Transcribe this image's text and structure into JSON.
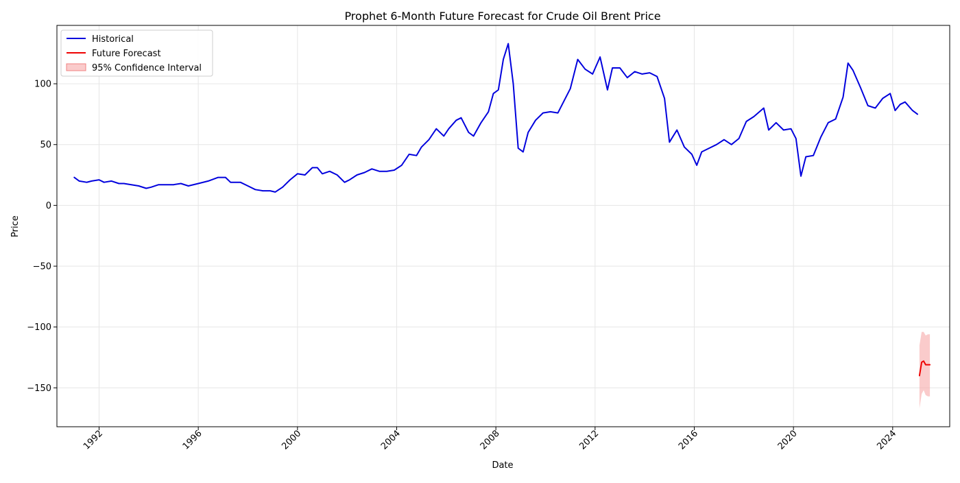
{
  "chart_data": {
    "type": "line",
    "title": "Prophet 6-Month Future Forecast for Crude Oil Brent Price",
    "xlabel": "Date",
    "ylabel": "Price",
    "xlim": [
      1990.3,
      2026.3
    ],
    "ylim": [
      -182,
      148
    ],
    "x_ticks": [
      1992,
      1996,
      2000,
      2004,
      2008,
      2012,
      2016,
      2020,
      2024
    ],
    "y_ticks": [
      100,
      50,
      0,
      -50,
      -100,
      -150
    ],
    "y_tick_labels": [
      "100",
      "50",
      "0",
      "−50",
      "−100",
      "−150"
    ],
    "grid": true,
    "legend_position": "top-left",
    "legend": [
      {
        "label": "Historical",
        "color": "#0000dd",
        "kind": "line"
      },
      {
        "label": "Future Forecast",
        "color": "#ee0000",
        "kind": "line"
      },
      {
        "label": "95% Confidence Interval",
        "color": "#f7a8a8",
        "kind": "patch"
      }
    ],
    "series": [
      {
        "name": "Historical",
        "color": "#0000dd",
        "x": [
          1991.0,
          1991.2,
          1991.5,
          1991.7,
          1992.0,
          1992.2,
          1992.5,
          1992.8,
          1993.0,
          1993.3,
          1993.6,
          1993.9,
          1994.1,
          1994.4,
          1994.7,
          1995.0,
          1995.3,
          1995.6,
          1996.0,
          1996.4,
          1996.8,
          1997.1,
          1997.3,
          1997.7,
          1998.0,
          1998.3,
          1998.6,
          1998.9,
          1999.1,
          1999.4,
          1999.7,
          2000.0,
          2000.3,
          2000.6,
          2000.8,
          2001.0,
          2001.3,
          2001.6,
          2001.9,
          2002.1,
          2002.4,
          2002.7,
          2003.0,
          2003.3,
          2003.6,
          2003.9,
          2004.2,
          2004.5,
          2004.8,
          2005.0,
          2005.3,
          2005.6,
          2005.9,
          2006.1,
          2006.4,
          2006.6,
          2006.9,
          2007.1,
          2007.4,
          2007.7,
          2007.9,
          2008.1,
          2008.3,
          2008.5,
          2008.7,
          2008.9,
          2009.1,
          2009.3,
          2009.6,
          2009.9,
          2010.2,
          2010.5,
          2010.8,
          2011.0,
          2011.3,
          2011.6,
          2011.9,
          2012.2,
          2012.5,
          2012.7,
          2013.0,
          2013.3,
          2013.6,
          2013.9,
          2014.2,
          2014.5,
          2014.8,
          2015.0,
          2015.3,
          2015.6,
          2015.9,
          2016.1,
          2016.3,
          2016.6,
          2016.9,
          2017.2,
          2017.5,
          2017.8,
          2018.1,
          2018.4,
          2018.8,
          2019.0,
          2019.3,
          2019.6,
          2019.9,
          2020.1,
          2020.3,
          2020.5,
          2020.8,
          2021.1,
          2021.4,
          2021.7,
          2022.0,
          2022.2,
          2022.4,
          2022.7,
          2023.0,
          2023.3,
          2023.6,
          2023.9,
          2024.1,
          2024.3,
          2024.5,
          2024.8,
          2025.0
        ],
        "y": [
          23,
          20,
          19,
          20,
          21,
          19,
          20,
          18,
          18,
          17,
          16,
          14,
          15,
          17,
          17,
          17,
          18,
          16,
          18,
          20,
          23,
          23,
          19,
          19,
          16,
          13,
          12,
          12,
          11,
          15,
          21,
          26,
          25,
          31,
          31,
          26,
          28,
          25,
          19,
          21,
          25,
          27,
          30,
          28,
          28,
          29,
          33,
          42,
          41,
          48,
          54,
          63,
          57,
          63,
          70,
          72,
          60,
          57,
          68,
          77,
          92,
          95,
          120,
          133,
          100,
          47,
          44,
          60,
          70,
          76,
          77,
          76,
          88,
          96,
          120,
          112,
          108,
          122,
          95,
          113,
          113,
          105,
          110,
          108,
          109,
          106,
          88,
          52,
          62,
          48,
          42,
          33,
          44,
          47,
          50,
          54,
          50,
          55,
          69,
          73,
          80,
          62,
          68,
          62,
          63,
          55,
          24,
          40,
          41,
          56,
          68,
          71,
          89,
          117,
          111,
          97,
          82,
          80,
          88,
          92,
          78,
          83,
          85,
          78,
          75
        ]
      },
      {
        "name": "Future Forecast",
        "color": "#ee0000",
        "x": [
          2025.08,
          2025.17,
          2025.25,
          2025.33,
          2025.42,
          2025.5
        ],
        "y": [
          -140,
          -129,
          -128,
          -131,
          -131,
          -131
        ]
      }
    ],
    "confidence_band": {
      "name": "95% Confidence Interval",
      "color": "#f7a8a8",
      "x": [
        2025.08,
        2025.17,
        2025.25,
        2025.33,
        2025.42,
        2025.5
      ],
      "lower": [
        -167,
        -155,
        -152,
        -156,
        -157,
        -157
      ],
      "upper": [
        -115,
        -104,
        -104,
        -107,
        -106,
        -106
      ]
    }
  }
}
